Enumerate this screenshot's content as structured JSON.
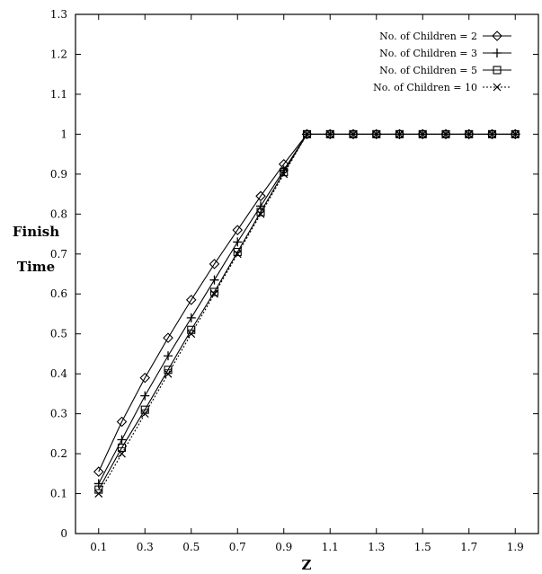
{
  "chart_data": {
    "type": "line",
    "title": "",
    "xlabel": "Z",
    "ylabel": "Finish Time",
    "ylabel_lines": [
      "Finish",
      "Time"
    ],
    "xlim": [
      0,
      2
    ],
    "ylim": [
      0,
      1.3
    ],
    "xticks": [
      "0.1",
      "0.3",
      "0.5",
      "0.7",
      "0.9",
      "1.1",
      "1.3",
      "1.5",
      "1.7",
      "1.9"
    ],
    "yticks": [
      "0",
      "0.1",
      "0.2",
      "0.3",
      "0.4",
      "0.5",
      "0.6",
      "0.7",
      "0.8",
      "0.9",
      "1",
      "1.1",
      "1.2",
      "1.3"
    ],
    "grid": false,
    "legend_position": "top-right",
    "x": [
      0.1,
      0.2,
      0.3,
      0.4,
      0.5,
      0.6,
      0.7,
      0.8,
      0.9,
      1.0,
      1.1,
      1.2,
      1.3,
      1.4,
      1.5,
      1.6,
      1.7,
      1.8,
      1.9
    ],
    "series": [
      {
        "name": "No. of Children = 2",
        "marker": "diamond",
        "values": [
          0.155,
          0.28,
          0.39,
          0.49,
          0.585,
          0.675,
          0.76,
          0.845,
          0.925,
          1,
          1,
          1,
          1,
          1,
          1,
          1,
          1,
          1,
          1
        ]
      },
      {
        "name": "No. of Children = 3",
        "marker": "plus",
        "values": [
          0.125,
          0.235,
          0.345,
          0.445,
          0.54,
          0.635,
          0.73,
          0.82,
          0.91,
          1,
          1,
          1,
          1,
          1,
          1,
          1,
          1,
          1,
          1
        ]
      },
      {
        "name": "No. of Children = 5",
        "marker": "square",
        "values": [
          0.11,
          0.215,
          0.31,
          0.41,
          0.51,
          0.605,
          0.705,
          0.805,
          0.905,
          1,
          1,
          1,
          1,
          1,
          1,
          1,
          1,
          1,
          1
        ]
      },
      {
        "name": "No. of Children = 10",
        "marker": "cross",
        "dash": "dotted",
        "values": [
          0.1,
          0.2,
          0.3,
          0.4,
          0.5,
          0.6,
          0.7,
          0.8,
          0.9,
          1,
          1,
          1,
          1,
          1,
          1,
          1,
          1,
          1,
          1
        ]
      }
    ],
    "line_color": "#000000"
  }
}
